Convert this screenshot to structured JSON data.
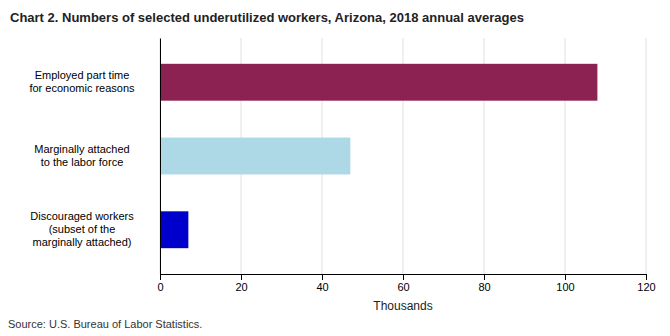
{
  "chart_data": {
    "type": "bar",
    "orientation": "horizontal",
    "title": "Chart 2. Numbers of selected underutilized workers, Arizona, 2018 annual averages",
    "categories": [
      "Discouraged workers\n(subset of the\nmarginally attached)",
      "Marginally attached\nto the labor force",
      "Employed part time\nfor economic reasons"
    ],
    "values": [
      7,
      47,
      108
    ],
    "colors": [
      "#0000cc",
      "#add8e6",
      "#8b2252"
    ],
    "xlabel": "Thousands",
    "xlim": [
      0,
      120
    ],
    "xticks": [
      0,
      20,
      40,
      60,
      80,
      100,
      120
    ],
    "grid": true,
    "annotations": [
      "Source: U.S. Bureau of Labor Statistics."
    ]
  }
}
